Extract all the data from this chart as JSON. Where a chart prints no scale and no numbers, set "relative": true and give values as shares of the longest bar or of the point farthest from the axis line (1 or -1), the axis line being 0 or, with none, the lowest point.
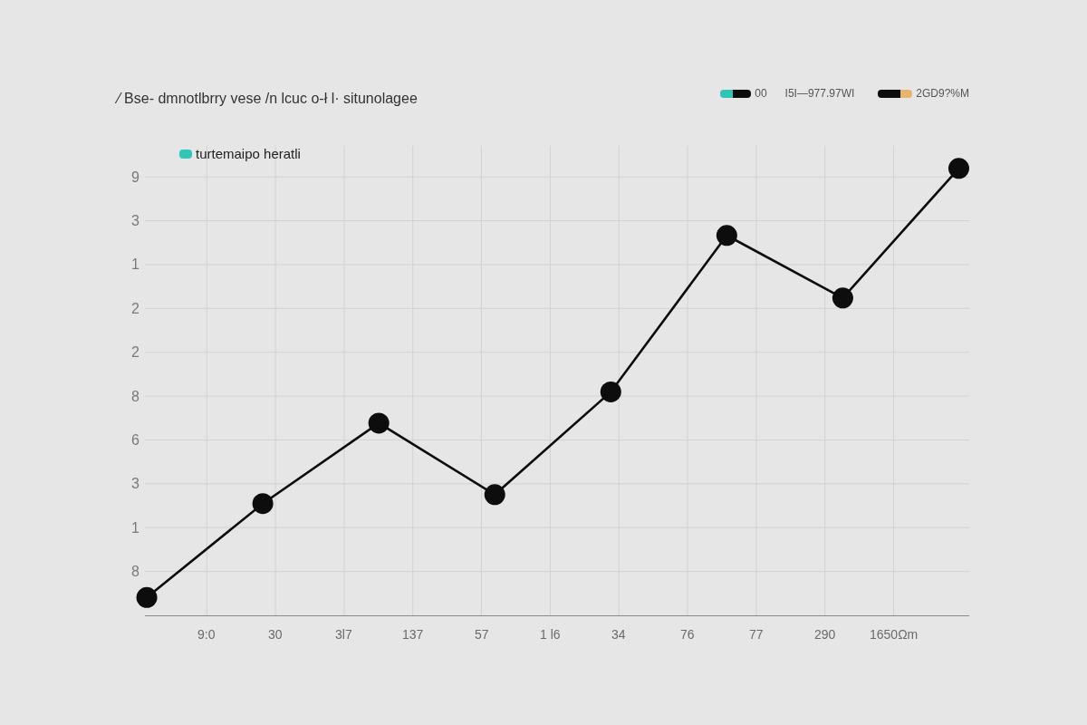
{
  "chart_data": {
    "type": "line",
    "title": "⁄ Bse- dmnotlbrry vese /n lcuc o-ł l· situnolagee",
    "annotations": [
      "00",
      "I5I—977.97WI",
      "2GD9?%M",
      "turtemaipo heratli",
      "9",
      "3",
      "1",
      "2",
      "2",
      "8",
      "6",
      "3",
      "1",
      "8",
      "9:0",
      "30",
      "3l7",
      "137",
      "57",
      "1 l6",
      "34",
      "76",
      "77",
      "290",
      "1650Ωm"
    ],
    "categories": [
      null,
      null,
      null,
      null,
      null,
      null,
      null,
      null
    ],
    "series": [
      {
        "color": "#0d0d0d",
        "values": [
          0.04,
          0.25,
          0.43,
          0.27,
          0.5,
          0.85,
          0.71,
          1
        ]
      }
    ],
    "relative": true,
    "grid": true,
    "marker": "circle",
    "line_style": "solid"
  }
}
